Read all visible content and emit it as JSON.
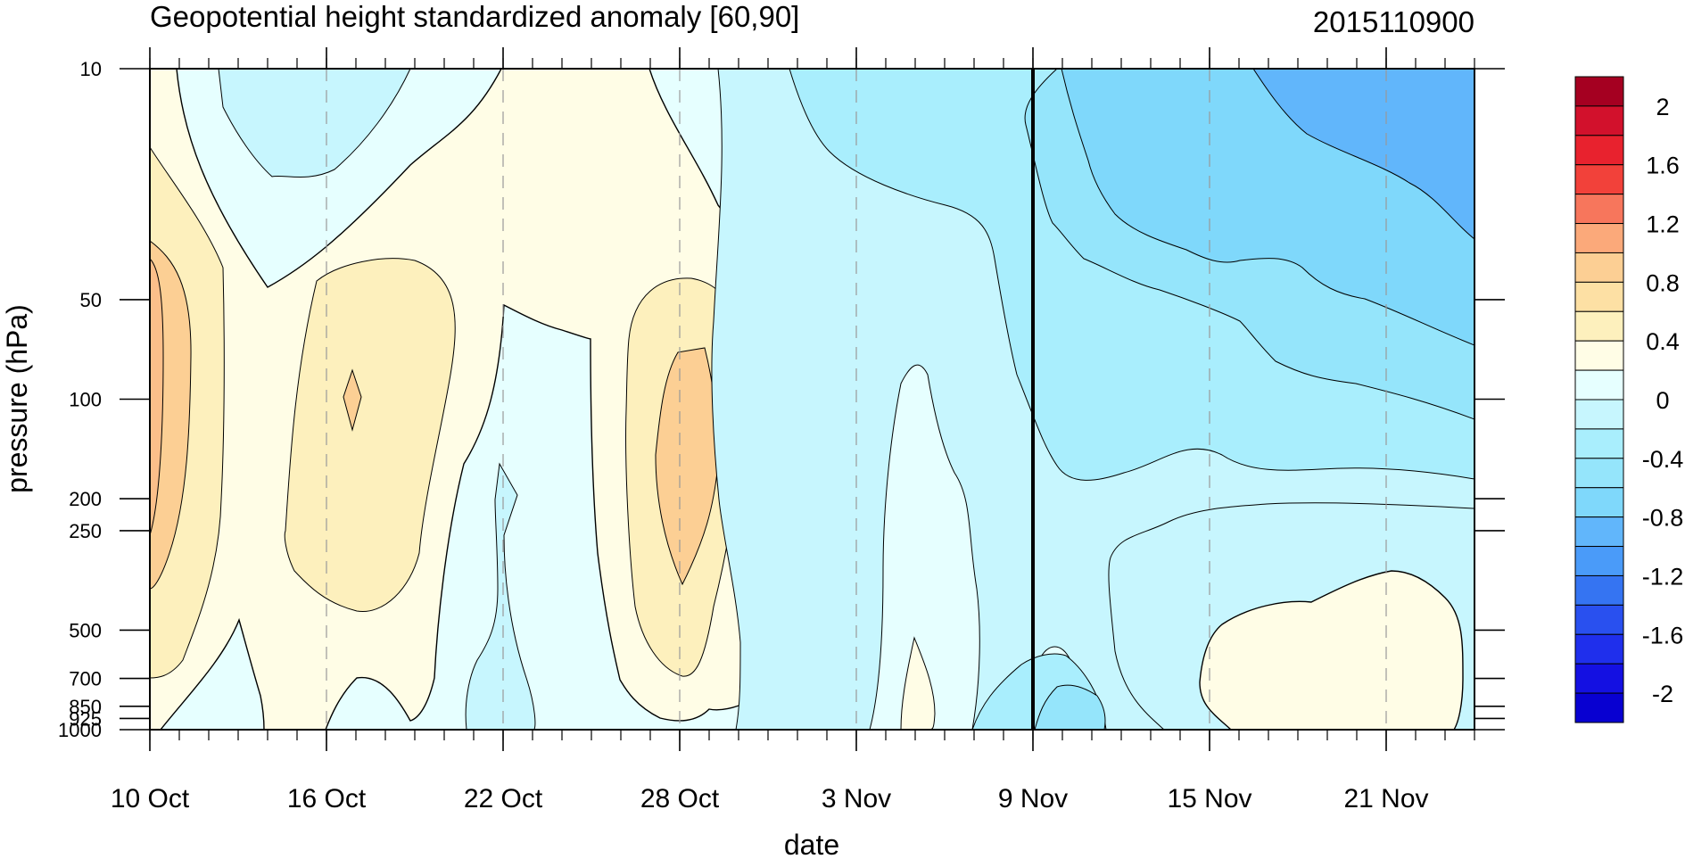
{
  "chart_data": {
    "type": "heatmap",
    "title": "Geopotential height standardized anomaly [60,90]",
    "subtitle_right": "2015110900",
    "xlabel": "date",
    "ylabel": "pressure (hPa)",
    "x_ticks": [
      "10 Oct",
      "16 Oct",
      "22 Oct",
      "28 Oct",
      "3 Nov",
      "9 Nov",
      "15 Nov",
      "21 Nov"
    ],
    "x_tick_days": [
      0,
      6,
      12,
      18,
      24,
      30,
      36,
      42
    ],
    "x_range_days": [
      0,
      45
    ],
    "y_ticks": [
      "10",
      "50",
      "100",
      "200",
      "250",
      "500",
      "700",
      "850",
      "925",
      "1000"
    ],
    "y_scale": "log",
    "y_range": [
      1000,
      10
    ],
    "reference_date": "9 Nov",
    "colorbar_labels": [
      "2",
      "1.6",
      "1.2",
      "0.8",
      "0.4",
      "0",
      "-0.4",
      "-0.8",
      "-1.2",
      "-1.6",
      "-2"
    ],
    "colorbar_colors": [
      "#a50021",
      "#d2112c",
      "#e8222e",
      "#f2413a",
      "#f7765c",
      "#fba97a",
      "#fccf94",
      "#fde0a4",
      "#fdf0bd",
      "#fffde6",
      "#e6ffff",
      "#c7f6fe",
      "#a9eefd",
      "#95e5fb",
      "#7fd8fb",
      "#61b6fb",
      "#4a9bf9",
      "#3574f2",
      "#2950ef",
      "#1f2fec",
      "#1410e2",
      "#0800d1"
    ],
    "note": "Time-pressure cross-section; negative anomalies grow with time in the upper levels (strongest after 15 Nov near 10 hPa)."
  }
}
